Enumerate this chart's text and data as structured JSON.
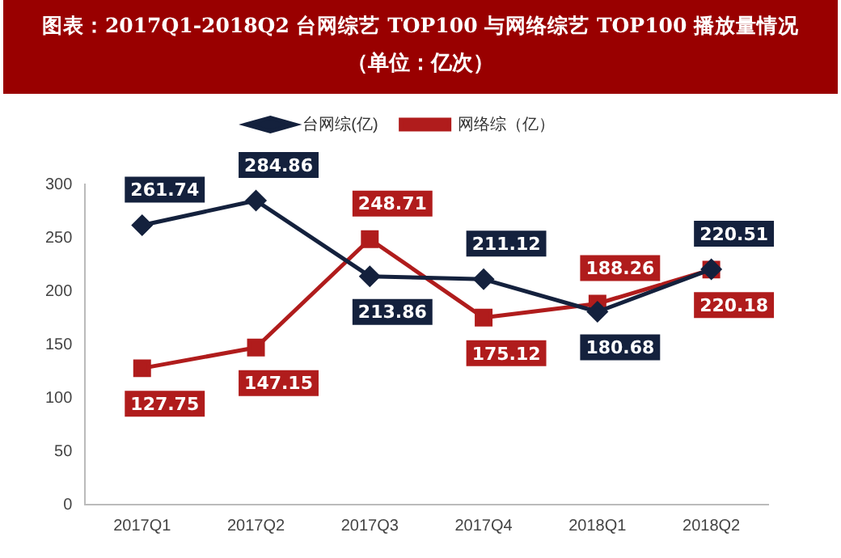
{
  "chart_data": {
    "type": "line",
    "title": "图表：2017Q1-2018Q2 台网综艺 TOP100 与网络综艺 TOP100 播放量情况",
    "subtitle": "（单位：亿次）",
    "categories": [
      "2017Q1",
      "2017Q2",
      "2017Q3",
      "2017Q4",
      "2018Q1",
      "2018Q2"
    ],
    "series": [
      {
        "name": "台网综(亿)",
        "color": "#14213d",
        "marker": "diamond",
        "values": [
          261.74,
          284.86,
          213.86,
          211.12,
          180.68,
          220.51
        ]
      },
      {
        "name": "网络综（亿）",
        "color": "#b01c1c",
        "marker": "square",
        "values": [
          127.75,
          147.15,
          248.71,
          175.12,
          188.26,
          220.18
        ]
      }
    ],
    "ylim": [
      0,
      300
    ],
    "yticks": [
      0,
      50,
      100,
      150,
      200,
      250,
      300
    ],
    "grid": false,
    "legend": "top",
    "data_labels": true
  }
}
